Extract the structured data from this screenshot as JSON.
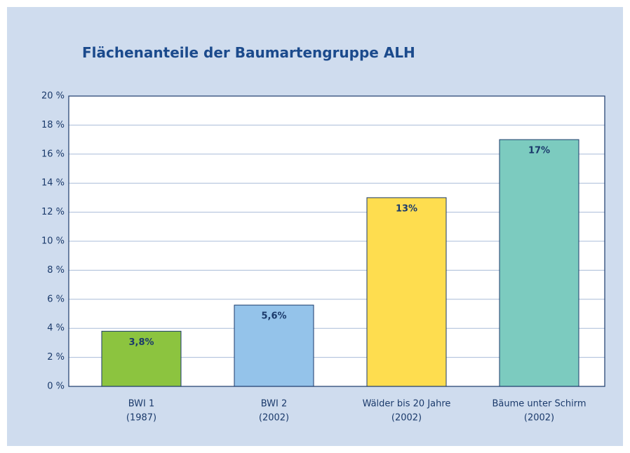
{
  "chart_data": {
    "type": "bar",
    "title": "Flächenanteile der Baumartengruppe ALH",
    "categories": [
      [
        "BWI 1",
        "(1987)"
      ],
      [
        "BWI 2",
        "(2002)"
      ],
      [
        "Wälder bis 20 Jahre",
        "(2002)"
      ],
      [
        "Bäume unter Schirm",
        "(2002)"
      ]
    ],
    "values": [
      3.8,
      5.6,
      13,
      17
    ],
    "value_labels": [
      "3,8%",
      "5,6%",
      "13%",
      "17%"
    ],
    "colors": [
      "#8cc43f",
      "#94c3ea",
      "#fedd4f",
      "#7ccbbf"
    ],
    "ylim": [
      0,
      20
    ],
    "yticks": [
      {
        "value": 0,
        "label": "0 %"
      },
      {
        "value": 2,
        "label": "2 %"
      },
      {
        "value": 4,
        "label": "4 %"
      },
      {
        "value": 6,
        "label": "6 %"
      },
      {
        "value": 8,
        "label": "8 %"
      },
      {
        "value": 10,
        "label": "10 %"
      },
      {
        "value": 12,
        "label": "12 %"
      },
      {
        "value": 14,
        "label": "14 %"
      },
      {
        "value": 16,
        "label": "16 %"
      },
      {
        "value": 18,
        "label": "18 %"
      },
      {
        "value": 20,
        "label": "20 %"
      }
    ],
    "grid": true
  }
}
